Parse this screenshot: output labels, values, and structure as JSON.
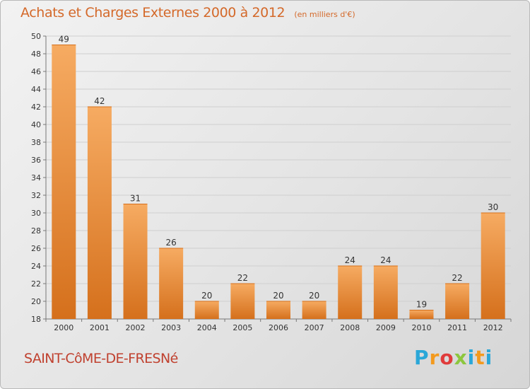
{
  "title": "Achats et Charges Externes 2000 à 2012",
  "unit": "(en milliers d'€)",
  "location": "SAINT-CôME-DE-FRESNé",
  "logo": {
    "name": "Proxiti"
  },
  "colors": {
    "bar": "#f08a2c",
    "bar_light": "#f6ab62",
    "bar_dark": "#d5701c",
    "title": "#d4692a",
    "town": "#c0412f"
  },
  "chart_data": {
    "type": "bar",
    "categories": [
      "2000",
      "2001",
      "2002",
      "2003",
      "2004",
      "2005",
      "2006",
      "2007",
      "2008",
      "2009",
      "2010",
      "2011",
      "2012"
    ],
    "values": [
      49,
      42,
      31,
      26,
      20,
      22,
      20,
      20,
      24,
      24,
      19,
      22,
      30
    ],
    "ylim": [
      18,
      50
    ],
    "yticks": [
      18,
      20,
      22,
      24,
      26,
      28,
      30,
      32,
      34,
      36,
      38,
      40,
      42,
      44,
      46,
      48,
      50
    ],
    "grid": true,
    "data_labels": true
  }
}
